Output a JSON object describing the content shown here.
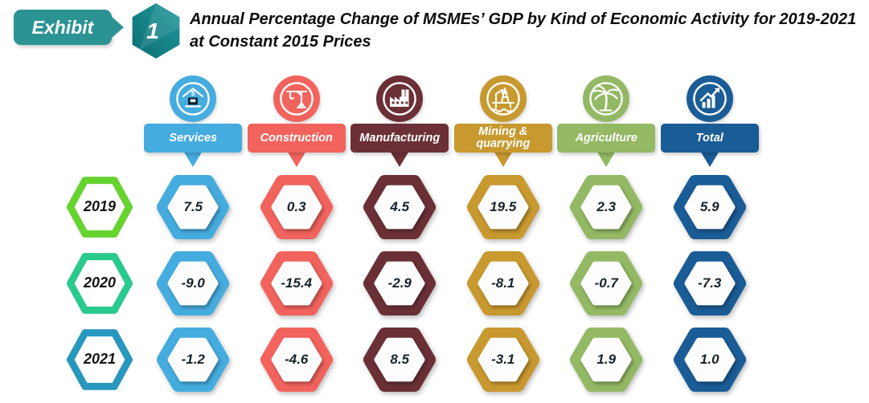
{
  "exhibit": {
    "label": "Exhibit",
    "number": "1",
    "accent_color": "#2B9394"
  },
  "title": "Annual Percentage Change of MSMEs’ GDP by Kind of Economic Activity for 2019-2021 at Constant 2015 Prices",
  "years": [
    {
      "label": "2019",
      "color": "#66D32F"
    },
    {
      "label": "2020",
      "color": "#2AC98D"
    },
    {
      "label": "2021",
      "color": "#2897BF"
    }
  ],
  "columns": [
    {
      "label": "Services",
      "icon": "services-shop-icon",
      "color": "#45ACDF",
      "values": [
        "7.5",
        "-9.0",
        "-1.2"
      ]
    },
    {
      "label": "Construction",
      "icon": "crane-icon",
      "color": "#F2635D",
      "values": [
        "0.3",
        "-15.4",
        "-4.6"
      ]
    },
    {
      "label": "Manufacturing",
      "icon": "factory-icon",
      "color": "#6B3036",
      "values": [
        "4.5",
        "-2.9",
        "8.5"
      ]
    },
    {
      "label": "Mining & quarrying",
      "icon": "mining-rig-icon",
      "color": "#C8992F",
      "values": [
        "19.5",
        "-8.1",
        "-3.1"
      ]
    },
    {
      "label": "Agriculture",
      "icon": "palm-tree-icon",
      "color": "#93B964",
      "values": [
        "2.3",
        "-0.7",
        "1.9"
      ]
    },
    {
      "label": "Total",
      "icon": "growth-chart-icon",
      "color": "#1A5C96",
      "values": [
        "5.9",
        "-7.3",
        "1.0"
      ]
    }
  ],
  "chart_data": {
    "type": "table",
    "title": "Annual Percentage Change of MSMEs’ GDP by Kind of Economic Activity for 2019-2021 at Constant 2015 Prices",
    "unit": "percent",
    "rows": [
      "2019",
      "2020",
      "2021"
    ],
    "categories": [
      "Services",
      "Construction",
      "Manufacturing",
      "Mining & quarrying",
      "Agriculture",
      "Total"
    ],
    "series": [
      {
        "name": "Services",
        "values": [
          7.5,
          -9.0,
          -1.2
        ]
      },
      {
        "name": "Construction",
        "values": [
          0.3,
          -15.4,
          -4.6
        ]
      },
      {
        "name": "Manufacturing",
        "values": [
          4.5,
          -2.9,
          8.5
        ]
      },
      {
        "name": "Mining & quarrying",
        "values": [
          19.5,
          -8.1,
          -3.1
        ]
      },
      {
        "name": "Agriculture",
        "values": [
          2.3,
          -0.7,
          1.9
        ]
      },
      {
        "name": "Total",
        "values": [
          5.9,
          -7.3,
          1.0
        ]
      }
    ]
  }
}
